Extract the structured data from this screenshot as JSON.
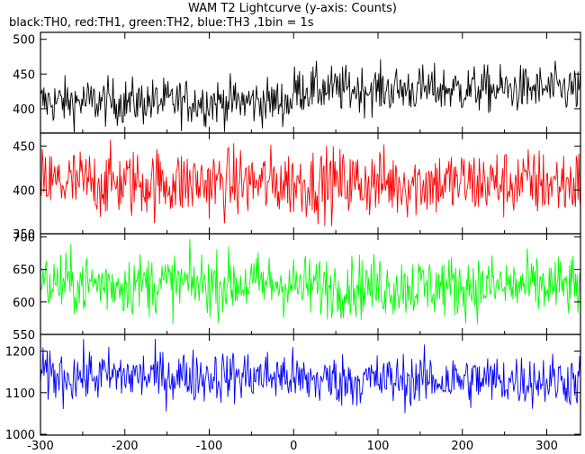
{
  "chart_data": {
    "type": "line",
    "title": "WAM T2 Lightcurve (y-axis: Counts)",
    "subtitle": "black:TH0, red:TH1, green:TH2, blue:TH3 ,1bin = 1s",
    "xlim": [
      -300,
      340
    ],
    "x_ticks": [
      "-300",
      "-200",
      "-100",
      "0",
      "100",
      "200",
      "300"
    ],
    "x_tick_values": [
      -300,
      -200,
      -100,
      0,
      100,
      200,
      300
    ],
    "bin_seconds": 1,
    "grid": false,
    "panels": [
      {
        "series": "TH0",
        "color": "#000000",
        "ylim": [
          365,
          510
        ],
        "y_ticks": [
          "400",
          "450",
          "500"
        ],
        "y_tick_values": [
          400,
          450,
          500
        ],
        "mean": 410,
        "noise": 17,
        "post_zero_mean": 428
      },
      {
        "series": "TH1",
        "color": "#ff0000",
        "ylim": [
          350,
          465
        ],
        "y_ticks": [
          "350",
          "400",
          "450"
        ],
        "y_tick_values": [
          350,
          400,
          450
        ],
        "mean": 408,
        "noise": 20,
        "post_zero_mean": 408
      },
      {
        "series": "TH2",
        "color": "#00ff00",
        "ylim": [
          550,
          705
        ],
        "y_ticks": [
          "550",
          "600",
          "650",
          "700"
        ],
        "y_tick_values": [
          550,
          600,
          650,
          700
        ],
        "mean": 628,
        "noise": 24,
        "post_zero_mean": 624
      },
      {
        "series": "TH3",
        "color": "#0000ff",
        "ylim": [
          998,
          1240
        ],
        "y_ticks": [
          "1000",
          "1100",
          "1200"
        ],
        "y_tick_values": [
          1000,
          1100,
          1200
        ],
        "mean": 1140,
        "noise": 32,
        "post_zero_mean": 1130
      }
    ]
  }
}
